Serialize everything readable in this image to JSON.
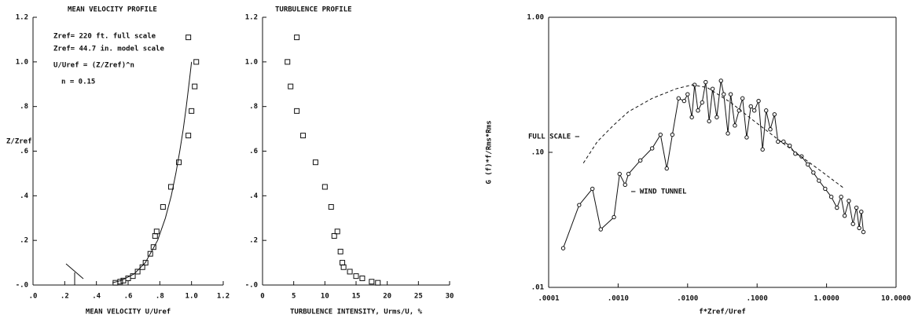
{
  "chart_data": [
    {
      "type": "scatter",
      "title": "MEAN VELOCITY PROFILE",
      "xlabel": "MEAN VELOCITY U/Uref",
      "ylabel": "Z/Zref",
      "annotations": [
        "Zref= 220 ft. full scale",
        "Zref= 44.7 in. model scale",
        "U/Uref = (Z/Zref)^n",
        "n = 0.15"
      ],
      "xscale": "linear",
      "yscale": "linear",
      "xlim": [
        0,
        1.2
      ],
      "ylim": [
        0,
        1.2
      ],
      "xticks": [
        {
          "value": 0,
          "label": ".0"
        },
        {
          "value": 0.2,
          "label": ".2"
        },
        {
          "value": 0.4,
          "label": ".4"
        },
        {
          "value": 0.6,
          "label": ".6"
        },
        {
          "value": 0.8,
          "label": ".8"
        },
        {
          "value": 1.0,
          "label": "1.0"
        },
        {
          "value": 1.2,
          "label": "1.2"
        }
      ],
      "yticks": [
        {
          "value": 0,
          "label": "-.0"
        },
        {
          "value": 0.2,
          "label": ".2"
        },
        {
          "value": 0.4,
          "label": ".4"
        },
        {
          "value": 0.6,
          "label": ".6"
        },
        {
          "value": 0.8,
          "label": ".8"
        },
        {
          "value": 1.0,
          "label": "1.0"
        },
        {
          "value": 1.2,
          "label": "1.2"
        }
      ],
      "series": [
        {
          "color": "#111111",
          "marker": "square",
          "line": "none",
          "x": [
            0.52,
            0.55,
            0.57,
            0.6,
            0.63,
            0.66,
            0.69,
            0.71,
            0.74,
            0.76,
            0.77,
            0.78,
            0.82,
            0.87,
            0.92,
            0.98,
            1.0,
            1.02,
            1.03,
            0.98
          ],
          "values": [
            0.01,
            0.015,
            0.02,
            0.03,
            0.04,
            0.06,
            0.08,
            0.1,
            0.14,
            0.17,
            0.22,
            0.24,
            0.35,
            0.44,
            0.55,
            0.67,
            0.78,
            0.89,
            1.0,
            1.11
          ]
        },
        {
          "color": "#111111",
          "marker": "none",
          "line": "solid",
          "x": [
            0.501,
            0.556,
            0.638,
            0.708,
            0.786,
            0.835,
            0.872,
            0.901,
            0.926,
            0.948,
            0.967,
            0.984,
            1.0
          ],
          "values": [
            0.01,
            0.02,
            0.05,
            0.1,
            0.2,
            0.3,
            0.4,
            0.5,
            0.6,
            0.7,
            0.8,
            0.9,
            1.0
          ]
        }
      ]
    },
    {
      "type": "scatter",
      "title": "TURBULENCE PROFILE",
      "xlabel": "TURBULENCE INTENSITY, Urms/U, %",
      "xscale": "linear",
      "yscale": "linear",
      "xlim": [
        0,
        30
      ],
      "ylim": [
        0,
        1.2
      ],
      "xticks": [
        0,
        5,
        10,
        15,
        20,
        25,
        30
      ],
      "yticks": [
        {
          "value": 0,
          "label": "-.0"
        },
        {
          "value": 0.2,
          "label": ".2"
        },
        {
          "value": 0.4,
          "label": ".4"
        },
        {
          "value": 0.6,
          "label": ".6"
        },
        {
          "value": 0.8,
          "label": ".8"
        },
        {
          "value": 1.0,
          "label": "1.0"
        },
        {
          "value": 1.2,
          "label": "1.2"
        }
      ],
      "series": [
        {
          "color": "#111111",
          "marker": "square",
          "line": "none",
          "x": [
            18.5,
            17.5,
            16,
            15,
            14,
            13,
            12.8,
            12.5,
            12,
            11.5,
            11,
            10,
            8.5,
            6.5,
            5.5,
            4.5,
            4,
            5.5
          ],
          "values": [
            0.01,
            0.015,
            0.03,
            0.04,
            0.06,
            0.08,
            0.1,
            0.15,
            0.24,
            0.22,
            0.35,
            0.44,
            0.55,
            0.67,
            0.78,
            0.89,
            1.0,
            1.11
          ]
        }
      ]
    },
    {
      "type": "line",
      "xlabel": "f*Zref/Uref",
      "ylabel": "G (f)*f/Rms*Rms",
      "annotations": [
        "FULL SCALE –",
        "– WIND TUNNEL"
      ],
      "xscale": "log",
      "yscale": "log",
      "xlim": [
        0.0001,
        10
      ],
      "ylim": [
        0.01,
        1
      ],
      "xticks": [
        {
          "value": 0.0001,
          "label": ".0001"
        },
        {
          "value": 0.001,
          "label": ".0010"
        },
        {
          "value": 0.01,
          "label": ".0100"
        },
        {
          "value": 0.1,
          "label": ".1000"
        },
        {
          "value": 1,
          "label": "1.0000"
        },
        {
          "value": 10,
          "label": "10.0000"
        }
      ],
      "yticks": [
        {
          "value": 0.01,
          "label": ".01"
        },
        {
          "value": 0.1,
          "label": ".10"
        },
        {
          "value": 1,
          "label": "1.00"
        }
      ],
      "series": [
        {
          "color": "#111111",
          "marker": "circle",
          "line": "solid",
          "x": [
            0.000162,
            0.000275,
            0.000427,
            0.000562,
            0.000871,
            0.00105,
            0.00126,
            0.00141,
            0.00209,
            0.00309,
            0.00407,
            0.00501,
            0.00603,
            0.00741,
            0.00891,
            0.01,
            0.0115,
            0.0126,
            0.0141,
            0.0162,
            0.0182,
            0.0204,
            0.0229,
            0.0263,
            0.0302,
            0.0331,
            0.038,
            0.0417,
            0.0479,
            0.055,
            0.0617,
            0.0708,
            0.0813,
            0.0912,
            0.105,
            0.12,
            0.135,
            0.155,
            0.178,
            0.2,
            0.24,
            0.295,
            0.355,
            0.437,
            0.537,
            0.646,
            0.776,
            0.955,
            1.17,
            1.41,
            1.62,
            1.82,
            2.09,
            2.4,
            2.69,
            2.95,
            3.16,
            3.39
          ],
          "values": [
            0.0195,
            0.0407,
            0.0537,
            0.0269,
            0.0331,
            0.0692,
            0.0575,
            0.0692,
            0.0871,
            0.107,
            0.135,
            0.0759,
            0.135,
            0.251,
            0.24,
            0.269,
            0.182,
            0.316,
            0.204,
            0.234,
            0.331,
            0.17,
            0.295,
            0.182,
            0.339,
            0.269,
            0.138,
            0.269,
            0.158,
            0.204,
            0.251,
            0.129,
            0.219,
            0.204,
            0.24,
            0.105,
            0.204,
            0.148,
            0.191,
            0.12,
            0.12,
            0.112,
            0.0977,
            0.0933,
            0.0813,
            0.0708,
            0.0617,
            0.0537,
            0.0468,
            0.0389,
            0.0468,
            0.0339,
            0.0437,
            0.0295,
            0.0389,
            0.0275,
            0.0363,
            0.0257
          ]
        },
        {
          "color": "#111111",
          "marker": "none",
          "line": "dashed",
          "x": [
            0.000316,
            0.000501,
            0.000851,
            0.00141,
            0.00309,
            0.00676,
            0.0115,
            0.0191,
            0.0417,
            0.0912,
            0.263,
            0.741,
            1.82
          ],
          "values": [
            0.0832,
            0.12,
            0.158,
            0.2,
            0.251,
            0.295,
            0.316,
            0.302,
            0.234,
            0.17,
            0.112,
            0.0759,
            0.0537
          ]
        }
      ]
    }
  ]
}
